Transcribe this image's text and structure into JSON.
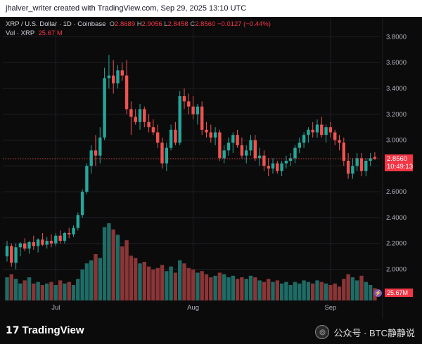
{
  "header": {
    "text": "jhalver_writer created with TradingView.com, Sep 29, 2025 13:10 UTC"
  },
  "legend": {
    "symbol": "XRP / U.S. Dollar · 1D · Coinbase",
    "open_label": "O",
    "open": "2.8689",
    "high_label": "H",
    "high": "2.9056",
    "low_label": "L",
    "low": "2.8458",
    "close_label": "C",
    "close": "2.8560",
    "change": "−0.0127 (−0.44%)",
    "vol_label": "Vol · XRP",
    "vol_value": "25.67 M"
  },
  "price_tag": {
    "price": "2.8560",
    "countdown": "10:49:13"
  },
  "volume_tag": "25.67M",
  "footer": {
    "brand": "TradingView",
    "brand_mark": "17",
    "watermark": "公众号 · BTC静静说"
  },
  "colors": {
    "up": "#26a69a",
    "down": "#ef5350",
    "bg": "#0b0b0c",
    "grid": "#1e2026"
  },
  "chart_data": {
    "type": "candlestick",
    "symbol": "XRP / U.S. Dollar",
    "interval": "1D",
    "exchange": "Coinbase",
    "y_ticks": [
      "3.8000",
      "3.6000",
      "3.4000",
      "3.2000",
      "3.0000",
      "2.8000",
      "2.6000",
      "2.4000",
      "2.2000",
      "2.0000"
    ],
    "y_tick_values": [
      3.8,
      3.6,
      3.4,
      3.2,
      3.0,
      2.8,
      2.6,
      2.4,
      2.2,
      2.0
    ],
    "ylim": [
      1.78,
      3.9
    ],
    "x_labels": [
      "Jul",
      "Aug",
      "Sep"
    ],
    "x_label_index": [
      11,
      42,
      73
    ],
    "last_price": 2.856,
    "candles": [
      {
        "o": 2.1,
        "h": 2.22,
        "l": 2.06,
        "c": 2.18
      },
      {
        "o": 2.18,
        "h": 2.2,
        "l": 2.02,
        "c": 2.05
      },
      {
        "o": 2.05,
        "h": 2.2,
        "l": 2.0,
        "c": 2.17
      },
      {
        "o": 2.17,
        "h": 2.21,
        "l": 2.1,
        "c": 2.2
      },
      {
        "o": 2.2,
        "h": 2.24,
        "l": 2.14,
        "c": 2.16
      },
      {
        "o": 2.16,
        "h": 2.22,
        "l": 2.12,
        "c": 2.21
      },
      {
        "o": 2.21,
        "h": 2.26,
        "l": 2.15,
        "c": 2.18
      },
      {
        "o": 2.18,
        "h": 2.24,
        "l": 2.13,
        "c": 2.23
      },
      {
        "o": 2.23,
        "h": 2.28,
        "l": 2.18,
        "c": 2.19
      },
      {
        "o": 2.19,
        "h": 2.25,
        "l": 2.16,
        "c": 2.22
      },
      {
        "o": 2.22,
        "h": 2.27,
        "l": 2.17,
        "c": 2.2
      },
      {
        "o": 2.2,
        "h": 2.28,
        "l": 2.18,
        "c": 2.26
      },
      {
        "o": 2.26,
        "h": 2.3,
        "l": 2.2,
        "c": 2.22
      },
      {
        "o": 2.22,
        "h": 2.29,
        "l": 2.2,
        "c": 2.28
      },
      {
        "o": 2.28,
        "h": 2.32,
        "l": 2.24,
        "c": 2.27
      },
      {
        "o": 2.27,
        "h": 2.34,
        "l": 2.25,
        "c": 2.32
      },
      {
        "o": 2.32,
        "h": 2.44,
        "l": 2.3,
        "c": 2.42
      },
      {
        "o": 2.42,
        "h": 2.62,
        "l": 2.4,
        "c": 2.6
      },
      {
        "o": 2.6,
        "h": 2.82,
        "l": 2.58,
        "c": 2.8
      },
      {
        "o": 2.8,
        "h": 2.96,
        "l": 2.74,
        "c": 2.92
      },
      {
        "o": 2.92,
        "h": 3.04,
        "l": 2.8,
        "c": 2.88
      },
      {
        "o": 2.88,
        "h": 3.1,
        "l": 2.82,
        "c": 3.02
      },
      {
        "o": 3.02,
        "h": 3.56,
        "l": 3.0,
        "c": 3.48
      },
      {
        "o": 3.48,
        "h": 3.66,
        "l": 3.4,
        "c": 3.5
      },
      {
        "o": 3.5,
        "h": 3.62,
        "l": 3.36,
        "c": 3.44
      },
      {
        "o": 3.44,
        "h": 3.58,
        "l": 3.4,
        "c": 3.54
      },
      {
        "o": 3.54,
        "h": 3.6,
        "l": 3.46,
        "c": 3.5
      },
      {
        "o": 3.5,
        "h": 3.62,
        "l": 3.2,
        "c": 3.24
      },
      {
        "o": 3.24,
        "h": 3.3,
        "l": 3.04,
        "c": 3.18
      },
      {
        "o": 3.18,
        "h": 3.24,
        "l": 3.12,
        "c": 3.14
      },
      {
        "o": 3.14,
        "h": 3.28,
        "l": 3.08,
        "c": 3.24
      },
      {
        "o": 3.24,
        "h": 3.26,
        "l": 3.1,
        "c": 3.14
      },
      {
        "o": 3.14,
        "h": 3.2,
        "l": 3.06,
        "c": 3.1
      },
      {
        "o": 3.1,
        "h": 3.16,
        "l": 3.04,
        "c": 3.06
      },
      {
        "o": 3.06,
        "h": 3.12,
        "l": 2.94,
        "c": 2.98
      },
      {
        "o": 2.98,
        "h": 3.02,
        "l": 2.78,
        "c": 2.82
      },
      {
        "o": 2.82,
        "h": 2.98,
        "l": 2.76,
        "c": 2.94
      },
      {
        "o": 2.94,
        "h": 3.12,
        "l": 2.92,
        "c": 3.08
      },
      {
        "o": 3.08,
        "h": 3.14,
        "l": 2.96,
        "c": 2.98
      },
      {
        "o": 2.98,
        "h": 3.38,
        "l": 2.96,
        "c": 3.34
      },
      {
        "o": 3.34,
        "h": 3.4,
        "l": 3.24,
        "c": 3.3
      },
      {
        "o": 3.3,
        "h": 3.36,
        "l": 3.2,
        "c": 3.26
      },
      {
        "o": 3.26,
        "h": 3.34,
        "l": 3.16,
        "c": 3.2
      },
      {
        "o": 3.2,
        "h": 3.28,
        "l": 3.12,
        "c": 3.26
      },
      {
        "o": 3.26,
        "h": 3.3,
        "l": 3.04,
        "c": 3.08
      },
      {
        "o": 3.08,
        "h": 3.14,
        "l": 3.02,
        "c": 3.06
      },
      {
        "o": 3.06,
        "h": 3.12,
        "l": 2.98,
        "c": 3.02
      },
      {
        "o": 3.02,
        "h": 3.1,
        "l": 2.96,
        "c": 3.06
      },
      {
        "o": 3.06,
        "h": 3.08,
        "l": 2.84,
        "c": 2.86
      },
      {
        "o": 2.86,
        "h": 2.96,
        "l": 2.82,
        "c": 2.92
      },
      {
        "o": 2.92,
        "h": 3.02,
        "l": 2.88,
        "c": 2.98
      },
      {
        "o": 2.98,
        "h": 3.06,
        "l": 2.9,
        "c": 3.04
      },
      {
        "o": 3.04,
        "h": 3.08,
        "l": 2.94,
        "c": 2.96
      },
      {
        "o": 2.96,
        "h": 3.02,
        "l": 2.86,
        "c": 2.88
      },
      {
        "o": 2.88,
        "h": 2.96,
        "l": 2.82,
        "c": 2.92
      },
      {
        "o": 2.92,
        "h": 3.04,
        "l": 2.88,
        "c": 3.0
      },
      {
        "o": 3.0,
        "h": 3.04,
        "l": 2.84,
        "c": 2.86
      },
      {
        "o": 2.86,
        "h": 2.94,
        "l": 2.8,
        "c": 2.88
      },
      {
        "o": 2.88,
        "h": 2.92,
        "l": 2.76,
        "c": 2.8
      },
      {
        "o": 2.8,
        "h": 2.86,
        "l": 2.72,
        "c": 2.78
      },
      {
        "o": 2.78,
        "h": 2.86,
        "l": 2.74,
        "c": 2.82
      },
      {
        "o": 2.82,
        "h": 2.84,
        "l": 2.74,
        "c": 2.76
      },
      {
        "o": 2.76,
        "h": 2.84,
        "l": 2.72,
        "c": 2.82
      },
      {
        "o": 2.82,
        "h": 2.88,
        "l": 2.78,
        "c": 2.84
      },
      {
        "o": 2.84,
        "h": 2.9,
        "l": 2.8,
        "c": 2.86
      },
      {
        "o": 2.86,
        "h": 2.96,
        "l": 2.82,
        "c": 2.94
      },
      {
        "o": 2.94,
        "h": 3.02,
        "l": 2.9,
        "c": 2.98
      },
      {
        "o": 2.98,
        "h": 3.06,
        "l": 2.94,
        "c": 3.04
      },
      {
        "o": 3.04,
        "h": 3.1,
        "l": 2.98,
        "c": 3.08
      },
      {
        "o": 3.08,
        "h": 3.14,
        "l": 3.02,
        "c": 3.06
      },
      {
        "o": 3.06,
        "h": 3.16,
        "l": 3.02,
        "c": 3.12
      },
      {
        "o": 3.12,
        "h": 3.18,
        "l": 3.02,
        "c": 3.04
      },
      {
        "o": 3.04,
        "h": 3.12,
        "l": 2.98,
        "c": 3.1
      },
      {
        "o": 3.1,
        "h": 3.14,
        "l": 3.02,
        "c": 3.06
      },
      {
        "o": 3.06,
        "h": 3.08,
        "l": 2.96,
        "c": 3.0
      },
      {
        "o": 3.0,
        "h": 3.04,
        "l": 2.92,
        "c": 2.98
      },
      {
        "o": 2.98,
        "h": 3.02,
        "l": 2.8,
        "c": 2.84
      },
      {
        "o": 2.84,
        "h": 2.9,
        "l": 2.7,
        "c": 2.74
      },
      {
        "o": 2.74,
        "h": 2.86,
        "l": 2.7,
        "c": 2.8
      },
      {
        "o": 2.8,
        "h": 2.9,
        "l": 2.76,
        "c": 2.86
      },
      {
        "o": 2.86,
        "h": 2.9,
        "l": 2.72,
        "c": 2.76
      },
      {
        "o": 2.76,
        "h": 2.86,
        "l": 2.72,
        "c": 2.84
      },
      {
        "o": 2.84,
        "h": 2.9,
        "l": 2.8,
        "c": 2.86
      },
      {
        "o": 2.869,
        "h": 2.906,
        "l": 2.846,
        "c": 2.856
      }
    ],
    "volumes": [
      30,
      34,
      28,
      22,
      26,
      30,
      22,
      24,
      20,
      22,
      24,
      20,
      26,
      22,
      24,
      20,
      28,
      40,
      48,
      52,
      60,
      55,
      95,
      100,
      92,
      85,
      70,
      78,
      58,
      55,
      48,
      50,
      44,
      40,
      42,
      46,
      38,
      44,
      36,
      52,
      48,
      42,
      40,
      36,
      38,
      34,
      30,
      32,
      36,
      34,
      30,
      32,
      28,
      30,
      28,
      32,
      30,
      26,
      24,
      28,
      24,
      26,
      22,
      24,
      20,
      24,
      22,
      26,
      24,
      22,
      26,
      24,
      22,
      20,
      22,
      18,
      28,
      34,
      30,
      26,
      32,
      24,
      20,
      16
    ],
    "volume_up": [
      true,
      false,
      true,
      true,
      false,
      true,
      false,
      true,
      false,
      true,
      false,
      true,
      false,
      true,
      false,
      true,
      true,
      true,
      true,
      true,
      false,
      true,
      true,
      true,
      false,
      true,
      false,
      false,
      false,
      false,
      true,
      false,
      false,
      false,
      false,
      false,
      true,
      true,
      false,
      true,
      false,
      false,
      false,
      true,
      false,
      false,
      false,
      true,
      false,
      true,
      true,
      true,
      false,
      false,
      true,
      true,
      false,
      true,
      false,
      false,
      true,
      false,
      true,
      true,
      true,
      true,
      true,
      true,
      true,
      false,
      true,
      false,
      true,
      false,
      false,
      false,
      false,
      false,
      true,
      true,
      false,
      true,
      true,
      false
    ]
  }
}
